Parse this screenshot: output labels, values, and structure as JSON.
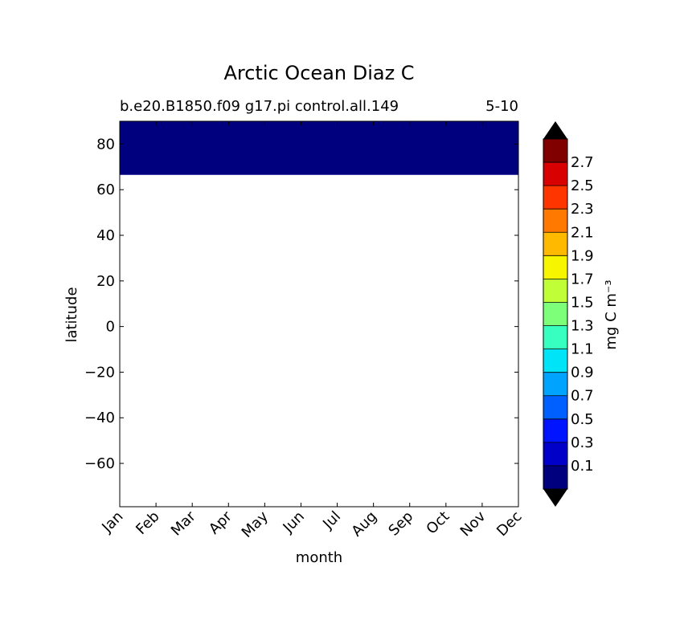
{
  "chart_data": {
    "type": "heatmap",
    "title": "Arctic Ocean Diaz C",
    "subtitle_left": "b.e20.B1850.f09 g17.pi control.all.149",
    "subtitle_right": "5-10",
    "xlabel": "month",
    "ylabel": "latitude",
    "x_categories": [
      "Jan",
      "Feb",
      "Mar",
      "Apr",
      "May",
      "Jun",
      "Jul",
      "Aug",
      "Sep",
      "Oct",
      "Nov",
      "Dec"
    ],
    "ylim": [
      -79,
      90
    ],
    "yticks": [
      80,
      60,
      40,
      20,
      0,
      -20,
      -40,
      -60
    ],
    "ytick_labels": [
      "80",
      "60",
      "40",
      "20",
      "0",
      "−20",
      "−40",
      "−60"
    ],
    "filled_regions": [
      {
        "lat_min": 66.5,
        "lat_max": 90,
        "month_start": "Jan",
        "month_end": "Dec",
        "value_range": "< 0.1",
        "color": "#00007f"
      }
    ],
    "colorbar": {
      "label": "mg C m⁻³",
      "levels": [
        0.1,
        0.3,
        0.5,
        0.7,
        0.9,
        1.1,
        1.3,
        1.5,
        1.7,
        1.9,
        2.1,
        2.3,
        2.5,
        2.7
      ],
      "tick_labels": [
        "0.1",
        "0.3",
        "0.5",
        "0.7",
        "0.9",
        "1.1",
        "1.3",
        "1.5",
        "1.7",
        "1.9",
        "2.1",
        "2.3",
        "2.5",
        "2.7"
      ],
      "colors": [
        "#00007f",
        "#0000c8",
        "#0014ff",
        "#0060ff",
        "#00a4ff",
        "#00e4f8",
        "#37ffc0",
        "#7dff7a",
        "#c0ff37",
        "#f8f500",
        "#ffba00",
        "#ff7800",
        "#ff3500",
        "#d80000",
        "#800000"
      ],
      "under_color": "#000000",
      "over_color": "#000000",
      "extend": "both"
    }
  }
}
